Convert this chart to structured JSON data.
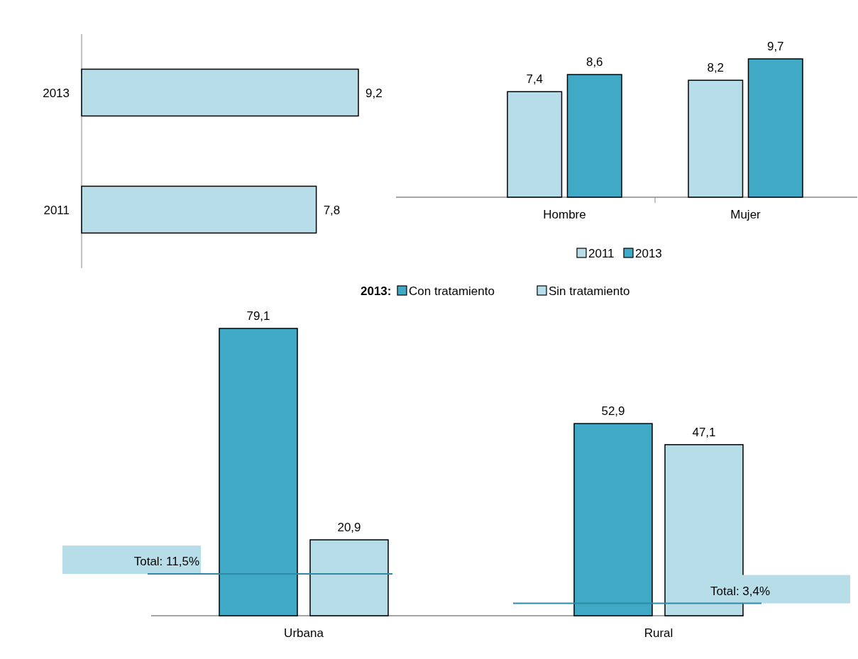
{
  "chart_data": [
    {
      "type": "bar",
      "orientation": "horizontal",
      "categories": [
        "2013",
        "2011"
      ],
      "values": [
        9.2,
        7.8
      ],
      "value_labels": [
        "9,2",
        "7,8"
      ],
      "color": "#b7dde9"
    },
    {
      "type": "bar",
      "categories": [
        "Hombre",
        "Mujer"
      ],
      "series": [
        {
          "name": "2011",
          "color": "#b7dde9",
          "values": [
            7.4,
            8.2
          ],
          "value_labels": [
            "7,4",
            "8,2"
          ]
        },
        {
          "name": "2013",
          "color": "#40a9c6",
          "values": [
            8.6,
            9.7
          ],
          "value_labels": [
            "8,6",
            "9,7"
          ]
        }
      ],
      "legend": "bottom"
    },
    {
      "type": "bar",
      "categories": [
        "Urbana",
        "Rural"
      ],
      "legend_title": "2013:",
      "series": [
        {
          "name": "Con tratamiento",
          "color": "#40a9c6",
          "values": [
            79.1,
            52.9
          ],
          "value_labels": [
            "79,1",
            "52,9"
          ]
        },
        {
          "name": "Sin tratamiento",
          "color": "#b7dde9",
          "values": [
            20.9,
            47.1
          ],
          "value_labels": [
            "20,9",
            "47,1"
          ]
        }
      ],
      "legend": "top",
      "ref_lines": [
        {
          "axis": "y",
          "value": 11.5,
          "label": "Total: 11,5%",
          "color": "#2e8aa5"
        },
        {
          "axis": "y",
          "value": 3.4,
          "label": "Total: 3,4%",
          "color": "#2e8aa5"
        }
      ]
    }
  ]
}
